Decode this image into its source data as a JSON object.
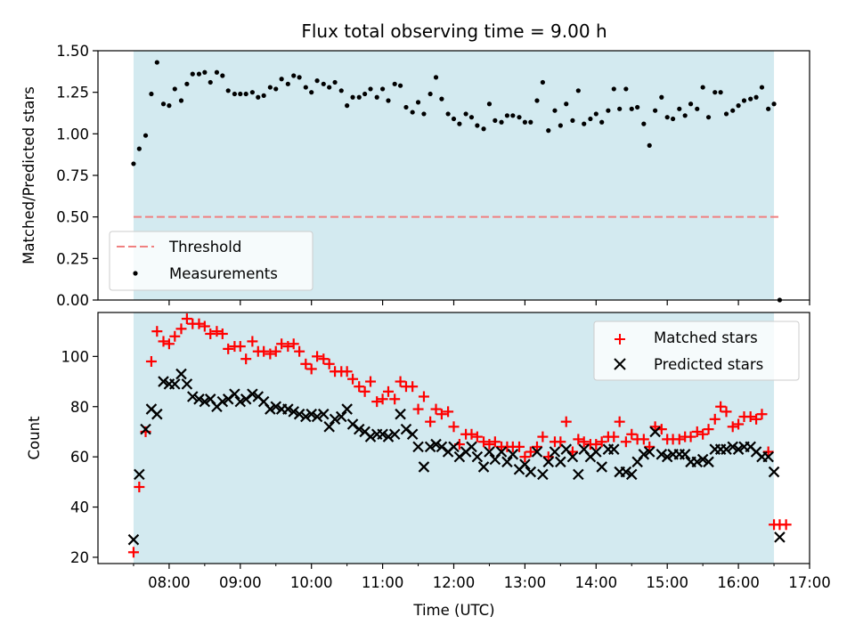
{
  "chart_data": [
    {
      "type": "scatter",
      "title": "Flux total observing time = 9.00 h",
      "ylabel": "Matched/Predicted stars",
      "xlabel": "",
      "xlim": [
        7.0,
        17.0
      ],
      "ylim": [
        0.0,
        1.5
      ],
      "yticks": [
        "0.00",
        "0.25",
        "0.50",
        "0.75",
        "1.00",
        "1.25",
        "1.50"
      ],
      "ytick_values": [
        0.0,
        0.25,
        0.5,
        0.75,
        1.0,
        1.25,
        1.5
      ],
      "observing_window": [
        7.5,
        16.5
      ],
      "threshold": {
        "name": "Threshold",
        "value": 0.5,
        "x_range": [
          7.5,
          16.58
        ],
        "color": "#f08080"
      },
      "series": [
        {
          "name": "Measurements",
          "color": "#000000",
          "x": [
            7.5,
            7.58,
            7.67,
            7.75,
            7.83,
            7.92,
            8.0,
            8.08,
            8.17,
            8.25,
            8.33,
            8.42,
            8.5,
            8.58,
            8.67,
            8.75,
            8.83,
            8.92,
            9.0,
            9.08,
            9.17,
            9.25,
            9.33,
            9.42,
            9.5,
            9.58,
            9.67,
            9.75,
            9.83,
            9.92,
            10.0,
            10.08,
            10.17,
            10.25,
            10.33,
            10.42,
            10.5,
            10.58,
            10.67,
            10.75,
            10.83,
            10.92,
            11.0,
            11.08,
            11.17,
            11.25,
            11.33,
            11.42,
            11.5,
            11.58,
            11.67,
            11.75,
            11.83,
            11.92,
            12.0,
            12.08,
            12.17,
            12.25,
            12.33,
            12.42,
            12.5,
            12.58,
            12.67,
            12.75,
            12.83,
            12.92,
            13.0,
            13.08,
            13.17,
            13.25,
            13.33,
            13.42,
            13.5,
            13.58,
            13.67,
            13.75,
            13.83,
            13.92,
            14.0,
            14.08,
            14.17,
            14.25,
            14.33,
            14.42,
            14.5,
            14.58,
            14.67,
            14.75,
            14.83,
            14.92,
            15.0,
            15.08,
            15.17,
            15.25,
            15.33,
            15.42,
            15.5,
            15.58,
            15.67,
            15.75,
            15.83,
            15.92,
            16.0,
            16.08,
            16.17,
            16.25,
            16.33,
            16.42,
            16.5,
            16.58
          ],
          "y": [
            0.82,
            0.91,
            0.99,
            1.24,
            1.43,
            1.18,
            1.17,
            1.27,
            1.2,
            1.3,
            1.36,
            1.36,
            1.37,
            1.31,
            1.37,
            1.35,
            1.26,
            1.24,
            1.24,
            1.24,
            1.25,
            1.22,
            1.23,
            1.28,
            1.27,
            1.33,
            1.3,
            1.35,
            1.34,
            1.28,
            1.25,
            1.32,
            1.3,
            1.28,
            1.31,
            1.26,
            1.17,
            1.22,
            1.22,
            1.24,
            1.27,
            1.22,
            1.27,
            1.2,
            1.3,
            1.29,
            1.16,
            1.13,
            1.19,
            1.12,
            1.24,
            1.34,
            1.21,
            1.12,
            1.09,
            1.06,
            1.12,
            1.1,
            1.05,
            1.03,
            1.18,
            1.08,
            1.07,
            1.11,
            1.11,
            1.1,
            1.07,
            1.07,
            1.2,
            1.31,
            1.02,
            1.14,
            1.05,
            1.18,
            1.08,
            1.26,
            1.06,
            1.09,
            1.12,
            1.07,
            1.14,
            1.27,
            1.15,
            1.27,
            1.15,
            1.16,
            1.06,
            0.93,
            1.14,
            1.22,
            1.1,
            1.09,
            1.15,
            1.11,
            1.18,
            1.15,
            1.28,
            1.1,
            1.25,
            1.25,
            1.12,
            1.14,
            1.17,
            1.2,
            1.21,
            1.22,
            1.28,
            1.15,
            1.18,
            0.0
          ]
        }
      ],
      "legend": {
        "location": "lower-left",
        "entries": [
          "Threshold",
          "Measurements"
        ]
      },
      "background_color": "#d3eaf0"
    },
    {
      "type": "scatter",
      "title": "",
      "ylabel": "Count",
      "xlabel": "Time (UTC)",
      "xlim": [
        7.0,
        17.0
      ],
      "ylim": [
        17.5,
        117.5
      ],
      "yticks": [
        "20",
        "40",
        "60",
        "80",
        "100"
      ],
      "ytick_values": [
        20,
        40,
        60,
        80,
        100
      ],
      "xticks": [
        "08:00",
        "09:00",
        "10:00",
        "11:00",
        "12:00",
        "13:00",
        "14:00",
        "15:00",
        "16:00",
        "17:00"
      ],
      "xtick_values": [
        8,
        9,
        10,
        11,
        12,
        13,
        14,
        15,
        16,
        17
      ],
      "observing_window": [
        7.5,
        16.5
      ],
      "series": [
        {
          "name": "Matched stars",
          "marker": "+",
          "color": "#ff0000",
          "x": [
            7.5,
            7.58,
            7.67,
            7.75,
            7.83,
            7.92,
            8.0,
            8.08,
            8.17,
            8.25,
            8.33,
            8.42,
            8.5,
            8.58,
            8.67,
            8.75,
            8.83,
            8.92,
            9.0,
            9.08,
            9.17,
            9.25,
            9.33,
            9.42,
            9.5,
            9.58,
            9.67,
            9.75,
            9.83,
            9.92,
            10.0,
            10.08,
            10.17,
            10.25,
            10.33,
            10.42,
            10.5,
            10.58,
            10.67,
            10.75,
            10.83,
            10.92,
            11.0,
            11.08,
            11.17,
            11.25,
            11.33,
            11.42,
            11.5,
            11.58,
            11.67,
            11.75,
            11.83,
            11.92,
            12.0,
            12.08,
            12.17,
            12.25,
            12.33,
            12.42,
            12.5,
            12.58,
            12.67,
            12.75,
            12.83,
            12.92,
            13.0,
            13.08,
            13.17,
            13.25,
            13.33,
            13.42,
            13.5,
            13.58,
            13.67,
            13.75,
            13.83,
            13.92,
            14.0,
            14.08,
            14.17,
            14.25,
            14.33,
            14.42,
            14.5,
            14.58,
            14.67,
            14.75,
            14.83,
            14.92,
            15.0,
            15.08,
            15.17,
            15.25,
            15.33,
            15.42,
            15.5,
            15.58,
            15.67,
            15.75,
            15.83,
            15.92,
            16.0,
            16.08,
            16.17,
            16.25,
            16.33,
            16.42,
            16.5,
            16.58,
            16.67
          ],
          "y": [
            22,
            48,
            70,
            98,
            110,
            106,
            105,
            108,
            111,
            115,
            113,
            113,
            112,
            109,
            110,
            109,
            103,
            104,
            104,
            99,
            106,
            102,
            102,
            101,
            102,
            105,
            104,
            105,
            102,
            97,
            95,
            100,
            99,
            97,
            94,
            94,
            94,
            91,
            88,
            86,
            90,
            82,
            83,
            86,
            83,
            90,
            88,
            88,
            79,
            84,
            74,
            79,
            77,
            78,
            72,
            65,
            69,
            69,
            68,
            66,
            65,
            66,
            64,
            64,
            64,
            64,
            60,
            62,
            64,
            68,
            60,
            66,
            66,
            74,
            62,
            67,
            66,
            65,
            65,
            66,
            68,
            68,
            74,
            66,
            69,
            67,
            67,
            64,
            72,
            71,
            67,
            67,
            67,
            68,
            68,
            70,
            69,
            71,
            75,
            80,
            78,
            72,
            73,
            76,
            76,
            75,
            77,
            62,
            33,
            33,
            33
          ]
        },
        {
          "name": "Predicted stars",
          "marker": "x",
          "color": "#000000",
          "x": [
            7.5,
            7.58,
            7.67,
            7.75,
            7.83,
            7.92,
            8.0,
            8.08,
            8.17,
            8.25,
            8.33,
            8.42,
            8.5,
            8.58,
            8.67,
            8.75,
            8.83,
            8.92,
            9.0,
            9.08,
            9.17,
            9.25,
            9.33,
            9.42,
            9.5,
            9.58,
            9.67,
            9.75,
            9.83,
            9.92,
            10.0,
            10.08,
            10.17,
            10.25,
            10.33,
            10.42,
            10.5,
            10.58,
            10.67,
            10.75,
            10.83,
            10.92,
            11.0,
            11.08,
            11.17,
            11.25,
            11.33,
            11.42,
            11.5,
            11.58,
            11.67,
            11.75,
            11.83,
            11.92,
            12.0,
            12.08,
            12.17,
            12.25,
            12.33,
            12.42,
            12.5,
            12.58,
            12.67,
            12.75,
            12.83,
            12.92,
            13.0,
            13.08,
            13.17,
            13.25,
            13.33,
            13.42,
            13.5,
            13.58,
            13.67,
            13.75,
            13.83,
            13.92,
            14.0,
            14.08,
            14.17,
            14.25,
            14.33,
            14.42,
            14.5,
            14.58,
            14.67,
            14.75,
            14.83,
            14.92,
            15.0,
            15.08,
            15.17,
            15.25,
            15.33,
            15.42,
            15.5,
            15.58,
            15.67,
            15.75,
            15.83,
            15.92,
            16.0,
            16.08,
            16.17,
            16.25,
            16.33,
            16.42,
            16.5,
            16.58
          ],
          "y": [
            27,
            53,
            71,
            79,
            77,
            90,
            89,
            89,
            93,
            89,
            84,
            83,
            82,
            83,
            80,
            82,
            83,
            85,
            82,
            83,
            85,
            84,
            82,
            79,
            80,
            79,
            79,
            78,
            77,
            76,
            77,
            76,
            77,
            72,
            75,
            76,
            79,
            73,
            71,
            70,
            68,
            69,
            69,
            68,
            69,
            77,
            71,
            69,
            64,
            56,
            64,
            65,
            64,
            62,
            64,
            60,
            62,
            64,
            60,
            56,
            62,
            59,
            62,
            58,
            61,
            55,
            57,
            54,
            62,
            53,
            58,
            62,
            58,
            63,
            60,
            53,
            63,
            60,
            62,
            56,
            63,
            63,
            54,
            54,
            53,
            58,
            61,
            62,
            70,
            61,
            60,
            61,
            61,
            61,
            58,
            58,
            59,
            58,
            63,
            63,
            63,
            64,
            63,
            64,
            64,
            62,
            60,
            60,
            54,
            28
          ]
        }
      ],
      "legend": {
        "location": "upper-right",
        "entries": [
          "Matched stars",
          "Predicted stars"
        ]
      },
      "background_color": "#d3eaf0"
    }
  ]
}
